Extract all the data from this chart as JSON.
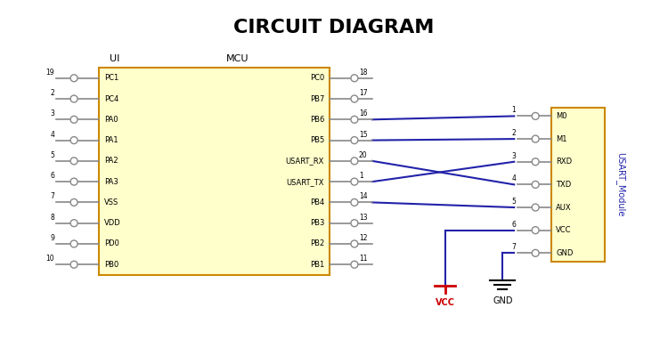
{
  "title": "CIRCUIT DIAGRAM",
  "title_fontsize": 16,
  "title_fontweight": "bold",
  "bg_color": "#ffffff",
  "mcu_box_fill": "#ffffcc",
  "mcu_box_edge": "#cc8800",
  "usart_box_fill": "#ffffcc",
  "usart_box_edge": "#cc8800",
  "label_color": "#000000",
  "blue_color": "#2222aa",
  "gray_color": "#888888",
  "red_color": "#cc0000",
  "mcu_label": "MCU",
  "ui_label": "UI",
  "usart_module_label": "USART_Module",
  "left_pins": [
    {
      "num": "19",
      "name": "PC1"
    },
    {
      "num": "2",
      "name": "PC4"
    },
    {
      "num": "3",
      "name": "PA0"
    },
    {
      "num": "4",
      "name": "PA1"
    },
    {
      "num": "5",
      "name": "PA2"
    },
    {
      "num": "6",
      "name": "PA3"
    },
    {
      "num": "7",
      "name": "VSS"
    },
    {
      "num": "8",
      "name": "VDD"
    },
    {
      "num": "9",
      "name": "PD0"
    },
    {
      "num": "10",
      "name": "PB0"
    }
  ],
  "right_pins": [
    {
      "num": "18",
      "name": "PC0",
      "connected": false
    },
    {
      "num": "17",
      "name": "PB7",
      "connected": false
    },
    {
      "num": "16",
      "name": "PB6",
      "connected": true
    },
    {
      "num": "15",
      "name": "PB5",
      "connected": true
    },
    {
      "num": "20",
      "name": "USART_RX",
      "connected": true
    },
    {
      "num": "1",
      "name": "USART_TX",
      "connected": true
    },
    {
      "num": "14",
      "name": "PB4",
      "connected": true
    },
    {
      "num": "13",
      "name": "PB3",
      "connected": false
    },
    {
      "num": "12",
      "name": "PB2",
      "connected": false
    },
    {
      "num": "11",
      "name": "PB1",
      "connected": false
    }
  ],
  "usart_pins": [
    {
      "num": "1",
      "name": "M0"
    },
    {
      "num": "2",
      "name": "M1"
    },
    {
      "num": "3",
      "name": "RXD"
    },
    {
      "num": "4",
      "name": "TXD"
    },
    {
      "num": "5",
      "name": "AUX"
    },
    {
      "num": "6",
      "name": "VCC"
    },
    {
      "num": "7",
      "name": "GND"
    }
  ]
}
